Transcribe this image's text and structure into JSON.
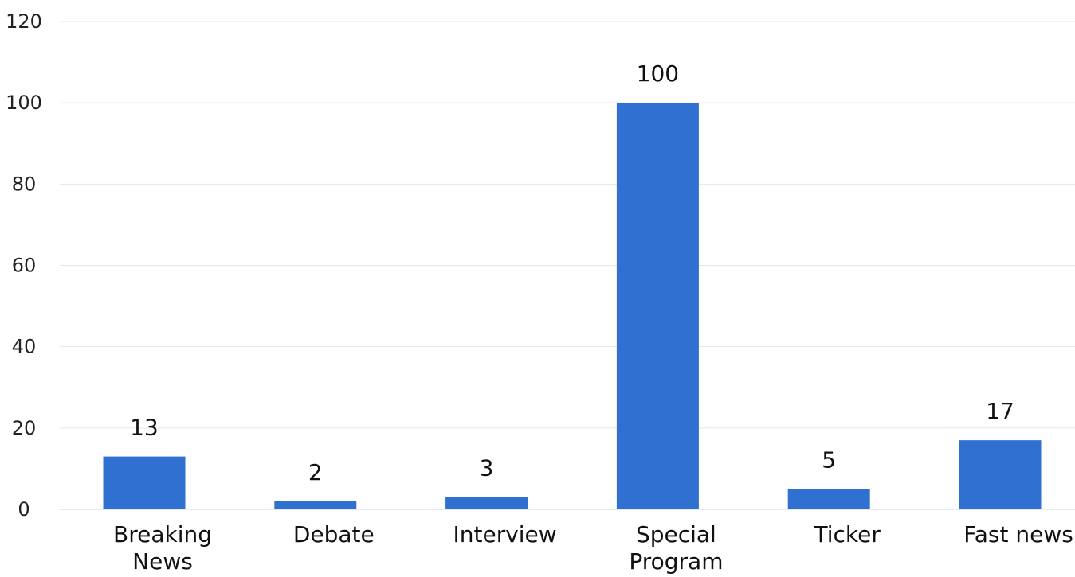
{
  "chart_data": {
    "type": "bar",
    "categories": [
      [
        "Breaking",
        "News"
      ],
      [
        "Debate"
      ],
      [
        "Interview"
      ],
      [
        "Special",
        "Program"
      ],
      [
        "Ticker"
      ],
      [
        "Fast news"
      ]
    ],
    "values": [
      13,
      2,
      3,
      100,
      5,
      17
    ],
    "data_labels": [
      "13",
      "2",
      "3",
      "100",
      "5",
      "17"
    ],
    "y_ticks": [
      "0",
      "20",
      "40",
      "60",
      "80",
      "100",
      "120"
    ],
    "ylim": [
      0,
      120
    ],
    "bar_color": "#3070D0",
    "grid": true,
    "legend": "none",
    "title": "",
    "xlabel": "",
    "ylabel": ""
  }
}
